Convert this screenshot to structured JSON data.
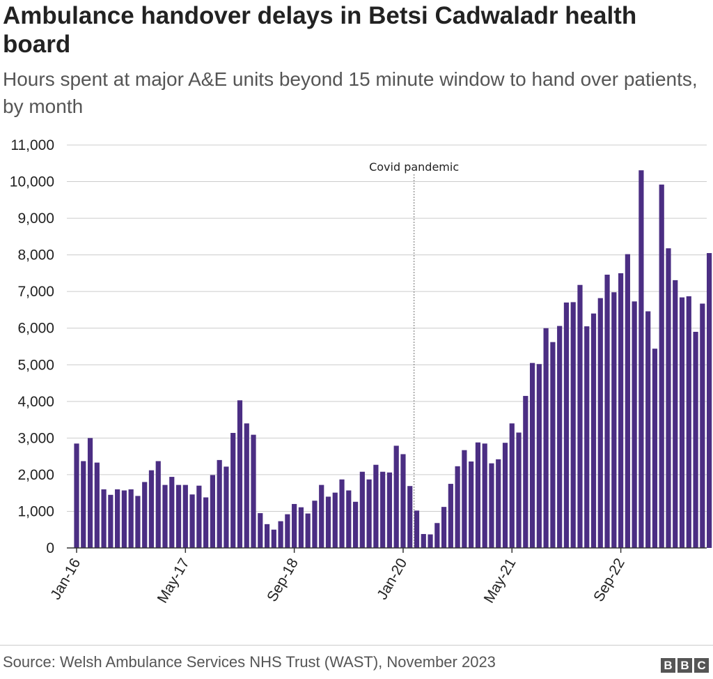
{
  "chart_data": {
    "type": "bar",
    "title": "Ambulance handover delays in Betsi Cadwaladr health board",
    "subtitle": "Hours spent at major A&E units beyond 15 minute window to hand over patients, by month",
    "xlabel": "",
    "ylabel": "",
    "ylim": [
      0,
      11000
    ],
    "yticks": [
      0,
      1000,
      2000,
      3000,
      4000,
      5000,
      6000,
      7000,
      8000,
      9000,
      10000,
      11000
    ],
    "ytick_labels": [
      "0",
      "1,000",
      "2,000",
      "3,000",
      "4,000",
      "5,000",
      "6,000",
      "7,000",
      "8,000",
      "9,000",
      "10,000",
      "11,000"
    ],
    "categories": [
      "Jan-16",
      "Feb-16",
      "Mar-16",
      "Apr-16",
      "May-16",
      "Jun-16",
      "Jul-16",
      "Aug-16",
      "Sep-16",
      "Oct-16",
      "Nov-16",
      "Dec-16",
      "Jan-17",
      "Feb-17",
      "Mar-17",
      "Apr-17",
      "May-17",
      "Jun-17",
      "Jul-17",
      "Aug-17",
      "Sep-17",
      "Oct-17",
      "Nov-17",
      "Dec-17",
      "Jan-18",
      "Feb-18",
      "Mar-18",
      "Apr-18",
      "May-18",
      "Jun-18",
      "Jul-18",
      "Aug-18",
      "Sep-18",
      "Oct-18",
      "Nov-18",
      "Dec-18",
      "Jan-19",
      "Feb-19",
      "Mar-19",
      "Apr-19",
      "May-19",
      "Jun-19",
      "Jul-19",
      "Aug-19",
      "Sep-19",
      "Oct-19",
      "Nov-19",
      "Dec-19",
      "Jan-20",
      "Feb-20",
      "Mar-20",
      "Apr-20",
      "May-20",
      "Jun-20",
      "Jul-20",
      "Aug-20",
      "Sep-20",
      "Oct-20",
      "Nov-20",
      "Dec-20",
      "Jan-21",
      "Feb-21",
      "Mar-21",
      "Apr-21",
      "May-21",
      "Jun-21",
      "Jul-21",
      "Aug-21",
      "Sep-21",
      "Oct-21",
      "Nov-21",
      "Dec-21",
      "Jan-22",
      "Feb-22",
      "Mar-22",
      "Apr-22",
      "May-22",
      "Jun-22",
      "Jul-22",
      "Aug-22",
      "Sep-22",
      "Oct-22",
      "Nov-22",
      "Dec-22",
      "Jan-23",
      "Feb-23",
      "Mar-23",
      "Apr-23",
      "May-23",
      "Jun-23",
      "Jul-23",
      "Aug-23",
      "Sep-23",
      "Oct-23"
    ],
    "values": [
      2850,
      2370,
      3000,
      2330,
      1600,
      1450,
      1600,
      1570,
      1600,
      1420,
      1800,
      2120,
      2370,
      1720,
      1940,
      1720,
      1720,
      1460,
      1700,
      1380,
      1990,
      2400,
      2220,
      3140,
      4030,
      3400,
      3090,
      950,
      650,
      500,
      730,
      920,
      1200,
      1110,
      940,
      1290,
      1720,
      1400,
      1510,
      1870,
      1570,
      1260,
      2080,
      1870,
      2270,
      2080,
      2060,
      2790,
      2560,
      1690,
      1020,
      380,
      370,
      680,
      1120,
      1750,
      2230,
      2670,
      2360,
      2880,
      2850,
      2310,
      2420,
      2870,
      3400,
      3150,
      4150,
      5050,
      5020,
      6000,
      5620,
      6060,
      6700,
      6710,
      7180,
      6050,
      6400,
      6820,
      7460,
      6980,
      7500,
      8020,
      6730,
      10310,
      6460,
      5440,
      9920,
      8180,
      7310,
      6840,
      6870,
      5900,
      6670,
      8050
    ],
    "x_tick_labels": [
      {
        "category": "Jan-16",
        "label": "Jan-16"
      },
      {
        "category": "May-17",
        "label": "May-17"
      },
      {
        "category": "Sep-18",
        "label": "Sep-18"
      },
      {
        "category": "Jan-20",
        "label": "Jan-20"
      },
      {
        "category": "May-21",
        "label": "May-21"
      },
      {
        "category": "Sep-22",
        "label": "Sep-22"
      }
    ],
    "annotations": [
      {
        "text": "Covid pandemic",
        "at_category": "Mar-20",
        "style": "dotted vertical line"
      }
    ],
    "grid": true,
    "legend": "none",
    "colors": {
      "bar": "#4b2e83",
      "grid": "#cccccc",
      "axis": "#333333",
      "annotation_line": "#888888"
    }
  },
  "footer": {
    "source": "Source: Welsh Ambulance Services NHS Trust (WAST), November 2023",
    "logo_letters": [
      "B",
      "B",
      "C"
    ]
  }
}
